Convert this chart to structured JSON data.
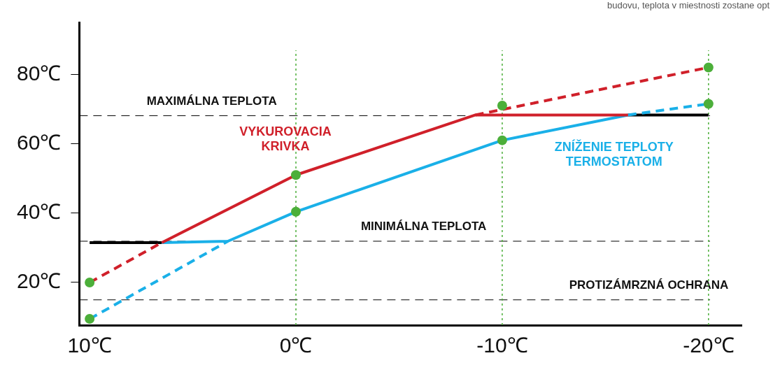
{
  "chart_data": {
    "type": "line",
    "xlim": [
      10.5,
      -21.6
    ],
    "ylim": [
      7.7,
      95
    ],
    "xticks": [
      {
        "value": 10,
        "label": "10℃"
      },
      {
        "value": 0,
        "label": "0℃"
      },
      {
        "value": -10,
        "label": "-10℃"
      },
      {
        "value": -20,
        "label": "-20℃"
      }
    ],
    "yticks": [
      {
        "value": 20,
        "label": "20℃"
      },
      {
        "value": 40,
        "label": "40℃"
      },
      {
        "value": 60,
        "label": "60℃"
      },
      {
        "value": 80,
        "label": "80℃"
      }
    ],
    "grid": false,
    "legend": false,
    "marker": "none",
    "series": [
      {
        "color": "#d0202a",
        "line_style": "dashed",
        "x": [
          10,
          6.5
        ],
        "values": [
          20,
          31.5
        ]
      },
      {
        "name": "VYKUROVACIA KRIVKA",
        "color": "#d0202a",
        "line_style": "solid",
        "x": [
          6.5,
          0,
          -8.7,
          -16.1
        ],
        "values": [
          31.5,
          51,
          68.3,
          68.3
        ]
      },
      {
        "color": "#d0202a",
        "line_style": "dashed",
        "x": [
          -8.7,
          -20
        ],
        "values": [
          68.3,
          82
        ]
      },
      {
        "color": "#1ab0e8",
        "line_style": "dashed",
        "x": [
          10,
          3.3
        ],
        "values": [
          9.5,
          31.9
        ]
      },
      {
        "name": "ZNÍŽENIE TEPLOTY TERMOSTATOM",
        "color": "#1ab0e8",
        "line_style": "solid",
        "x": [
          6.5,
          3.3,
          0,
          -10,
          -16.1
        ],
        "values": [
          31.5,
          31.9,
          40.4,
          61,
          68.3
        ]
      },
      {
        "color": "#1ab0e8",
        "line_style": "dashed",
        "x": [
          -16.1,
          -20
        ],
        "values": [
          68.3,
          71.5
        ]
      },
      {
        "color": "#000000",
        "line_style": "solid",
        "x": [
          10,
          6.5,
          -10,
          -16.1,
          -20
        ],
        "values": [
          31.5,
          31.5,
          null,
          68.3,
          68.3
        ]
      },
      {
        "type": "scatter",
        "marker": "circle",
        "color": "#4caf3a",
        "x": [
          10,
          10,
          0,
          0,
          -10,
          -10,
          -20,
          -20
        ],
        "values": [
          20,
          9.5,
          51,
          40.4,
          71,
          61,
          82,
          71.5
        ]
      }
    ],
    "ref_lines": [
      {
        "axis": "y",
        "value": 68.1,
        "label": "MAXIMÁLNA TEPLOTA",
        "color": "#000000",
        "line_style": "dashed"
      },
      {
        "axis": "y",
        "value": 31.9,
        "label": "MINIMÁLNA TEPLOTA",
        "color": "#000000",
        "line_style": "dashed"
      },
      {
        "axis": "y",
        "value": 15,
        "label": "PROTIZÁMRZNÁ OCHRANA",
        "color": "#000000",
        "line_style": "dashed"
      },
      {
        "axis": "x",
        "value": 0,
        "color": "#4caf3a",
        "line_style": "dotted"
      },
      {
        "axis": "x",
        "value": -10,
        "color": "#4caf3a",
        "line_style": "dotted"
      },
      {
        "axis": "x",
        "value": -20,
        "color": "#4caf3a",
        "line_style": "dotted"
      }
    ],
    "annotations": [
      "budovu, teplota v miestnosti zostane opt"
    ]
  }
}
